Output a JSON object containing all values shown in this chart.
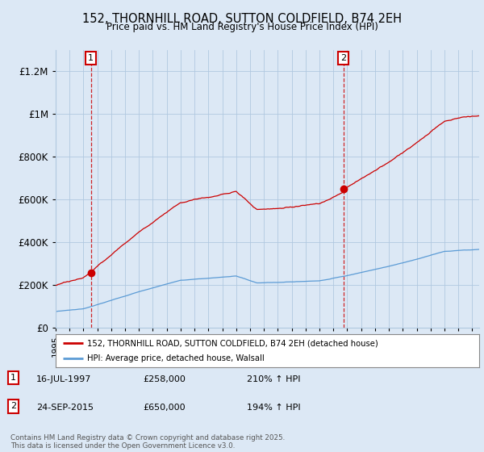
{
  "title_line1": "152, THORNHILL ROAD, SUTTON COLDFIELD, B74 2EH",
  "title_line2": "Price paid vs. HM Land Registry's House Price Index (HPI)",
  "ylim": [
    0,
    1300000
  ],
  "yticks": [
    0,
    200000,
    400000,
    600000,
    800000,
    1000000,
    1200000
  ],
  "ytick_labels": [
    "£0",
    "£200K",
    "£400K",
    "£600K",
    "£800K",
    "£1M",
    "£1.2M"
  ],
  "sale1_year": 1997.54,
  "sale1_price": 258000,
  "sale2_year": 2015.73,
  "sale2_price": 650000,
  "red_line_color": "#cc0000",
  "blue_line_color": "#5b9bd5",
  "dashed_line_color": "#cc0000",
  "annotation_box_color": "#cc0000",
  "background_color": "#dce8f5",
  "plot_bg_color": "#dce8f5",
  "grid_color": "#b0c8e0",
  "legend_line1": "152, THORNHILL ROAD, SUTTON COLDFIELD, B74 2EH (detached house)",
  "legend_line2": "HPI: Average price, detached house, Walsall",
  "copyright_text": "Contains HM Land Registry data © Crown copyright and database right 2025.\nThis data is licensed under the Open Government Licence v3.0."
}
